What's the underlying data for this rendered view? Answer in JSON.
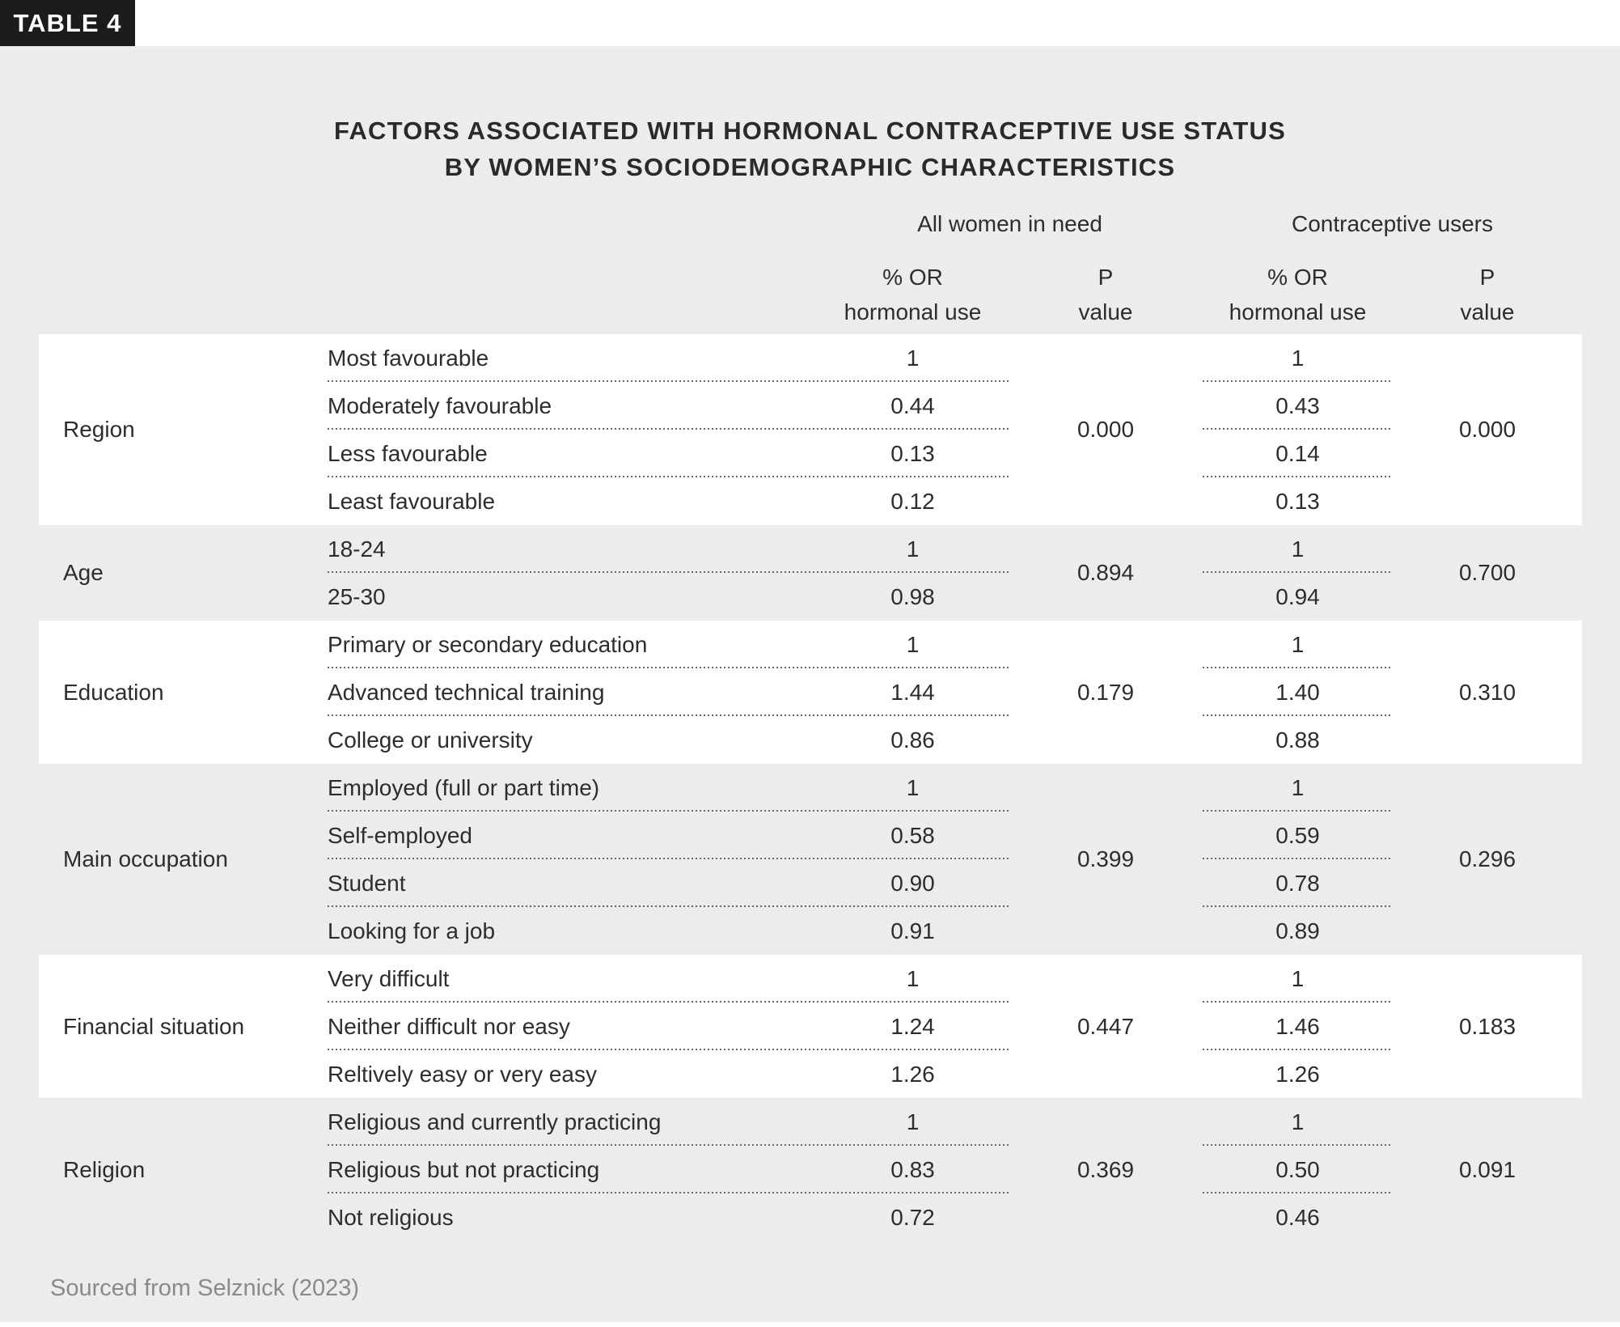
{
  "badge": {
    "label": "TABLE 4"
  },
  "title": {
    "line1": "FACTORS ASSOCIATED WITH HORMONAL CONTRACEPTIVE USE STATUS",
    "line2": "BY WOMEN’S SOCIODEMOGRAPHIC CHARACTERISTICS"
  },
  "header": {
    "group1": "All women in need",
    "group2": "Contraceptive users",
    "or_line1": "% OR",
    "or_line2": "hormonal use",
    "p_line1": "P",
    "p_line2": "value"
  },
  "source": "Sourced from Selznick (2023)",
  "colors": {
    "badge_bg": "#1d1c1b",
    "badge_text": "#ffffff",
    "panel_bg": "#ececeb",
    "block_bg": "#ffffff",
    "text": "#2e2d2b",
    "source_text": "#8a8a89",
    "dotted_separator": "#666664"
  },
  "chart_data": {
    "type": "table",
    "title": "FACTORS ASSOCIATED WITH HORMONAL CONTRACEPTIVE USE STATUS BY WOMEN’S SOCIODEMOGRAPHIC CHARACTERISTICS",
    "column_groups": [
      "All women in need",
      "Contraceptive users"
    ],
    "value_columns": [
      "% OR hormonal use",
      "P value",
      "% OR hormonal use",
      "P value"
    ],
    "groups": [
      {
        "factor": "Region",
        "rows": [
          {
            "category": "Most favourable",
            "all_or": "1",
            "users_or": "1"
          },
          {
            "category": "Moderately favourable",
            "all_or": "0.44",
            "users_or": "0.43"
          },
          {
            "category": "Less favourable",
            "all_or": "0.13",
            "users_or": "0.14"
          },
          {
            "category": "Least favourable",
            "all_or": "0.12",
            "users_or": "0.13"
          }
        ],
        "all_p": "0.000",
        "users_p": "0.000"
      },
      {
        "factor": "Age",
        "rows": [
          {
            "category": "18-24",
            "all_or": "1",
            "users_or": "1"
          },
          {
            "category": "25-30",
            "all_or": "0.98",
            "users_or": "0.94"
          }
        ],
        "all_p": "0.894",
        "users_p": "0.700"
      },
      {
        "factor": "Education",
        "rows": [
          {
            "category": "Primary or secondary education",
            "all_or": "1",
            "users_or": "1"
          },
          {
            "category": "Advanced technical training",
            "all_or": "1.44",
            "users_or": "1.40"
          },
          {
            "category": "College or university",
            "all_or": "0.86",
            "users_or": "0.88"
          }
        ],
        "all_p": "0.179",
        "users_p": "0.310"
      },
      {
        "factor": "Main occupation",
        "rows": [
          {
            "category": "Employed (full or part time)",
            "all_or": "1",
            "users_or": "1"
          },
          {
            "category": "Self-employed",
            "all_or": "0.58",
            "users_or": "0.59"
          },
          {
            "category": "Student",
            "all_or": "0.90",
            "users_or": "0.78"
          },
          {
            "category": "Looking for a job",
            "all_or": "0.91",
            "users_or": "0.89"
          }
        ],
        "all_p": "0.399",
        "users_p": "0.296"
      },
      {
        "factor": "Financial situation",
        "rows": [
          {
            "category": "Very difficult",
            "all_or": "1",
            "users_or": "1"
          },
          {
            "category": "Neither difficult nor easy",
            "all_or": "1.24",
            "users_or": "1.46"
          },
          {
            "category": "Reltively easy or very easy",
            "all_or": "1.26",
            "users_or": "1.26"
          }
        ],
        "all_p": "0.447",
        "users_p": "0.183"
      },
      {
        "factor": "Religion",
        "rows": [
          {
            "category": "Religious and currently practicing",
            "all_or": "1",
            "users_or": "1"
          },
          {
            "category": "Religious but not practicing",
            "all_or": "0.83",
            "users_or": "0.50"
          },
          {
            "category": "Not religious",
            "all_or": "0.72",
            "users_or": "0.46"
          }
        ],
        "all_p": "0.369",
        "users_p": "0.091"
      }
    ],
    "source": "Sourced from Selznick (2023)"
  }
}
